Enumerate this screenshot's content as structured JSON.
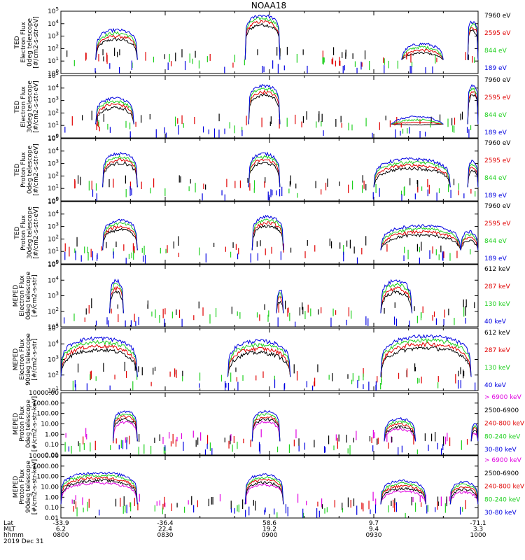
{
  "title": "NOAA18",
  "colors": {
    "black": "#000000",
    "red": "#e00000",
    "green": "#20d020",
    "blue": "#0000e0",
    "magenta": "#e000e0"
  },
  "footer": {
    "row_labels": [
      "Lat",
      "MLT",
      "hhmm"
    ],
    "date": "2019 Dec 31",
    "ticks": [
      {
        "time": "0800",
        "lat": "-33.9",
        "mlt": "6.2"
      },
      {
        "time": "0830",
        "lat": "-36.4",
        "mlt": "22.4"
      },
      {
        "time": "0900",
        "lat": "58.6",
        "mlt": "19.2"
      },
      {
        "time": "0930",
        "lat": "9.7",
        "mlt": "9.4"
      },
      {
        "time": "1000",
        "lat": "-71.1",
        "mlt": "3.3"
      }
    ]
  },
  "chart_data": [
    {
      "type": "line",
      "ylabel": [
        "TED",
        "Electron Flux",
        "0deg telescope",
        "[#/cm2-s-str-eV]"
      ],
      "yscale": "log",
      "ylim": [
        1,
        100000
      ],
      "ytick_labels": [
        "10^0",
        "10^1",
        "10^2",
        "10^3",
        "10^4",
        "10^5"
      ],
      "xlim": [
        "0800",
        "1000"
      ],
      "series": [
        {
          "name": "7960 eV",
          "color": "black"
        },
        {
          "name": "2595 eV",
          "color": "red"
        },
        {
          "name": "844 eV",
          "color": "green"
        },
        {
          "name": "189 eV",
          "color": "blue"
        }
      ],
      "activity": [
        {
          "from": "0810",
          "to": "0822",
          "peak": 4000
        },
        {
          "from": "0853",
          "to": "0903",
          "peak": 60000
        },
        {
          "from": "0938",
          "to": "0950",
          "peak": 300
        },
        {
          "from": "0957",
          "to": "1000",
          "peak": 20000
        }
      ]
    },
    {
      "type": "line",
      "ylabel": [
        "TED",
        "Electron Flux",
        "30deg telescope",
        "[#/cm2-s-str-eV]"
      ],
      "yscale": "log",
      "ylim": [
        1,
        100000
      ],
      "ytick_labels": [
        "10^0",
        "10^1",
        "10^2",
        "10^3",
        "10^4",
        "10^5"
      ],
      "xlim": [
        "0800",
        "1000"
      ],
      "series": [
        {
          "name": "7960 eV",
          "color": "black"
        },
        {
          "name": "2595 eV",
          "color": "red"
        },
        {
          "name": "844 eV",
          "color": "green"
        },
        {
          "name": "189 eV",
          "color": "blue"
        }
      ],
      "activity": [
        {
          "from": "0810",
          "to": "0821",
          "peak": 2000
        },
        {
          "from": "0854",
          "to": "0903",
          "peak": 20000
        },
        {
          "from": "0935",
          "to": "0950",
          "peak": 60
        },
        {
          "from": "0957",
          "to": "1000",
          "peak": 20000
        }
      ]
    },
    {
      "type": "line",
      "ylabel": [
        "TED",
        "Proton Flux",
        "0deg telescope",
        "[#/cm2-s-str-eV]"
      ],
      "yscale": "log",
      "ylim": [
        1,
        100000
      ],
      "ytick_labels": [
        "10^0",
        "10^1",
        "10^2",
        "10^3",
        "10^4",
        "10^5"
      ],
      "xlim": [
        "0800",
        "1000"
      ],
      "series": [
        {
          "name": "7960 eV",
          "color": "black"
        },
        {
          "name": "2595 eV",
          "color": "red"
        },
        {
          "name": "844 eV",
          "color": "green"
        },
        {
          "name": "189 eV",
          "color": "blue"
        }
      ],
      "activity": [
        {
          "from": "0812",
          "to": "0822",
          "peak": 8000
        },
        {
          "from": "0854",
          "to": "0903",
          "peak": 8000
        },
        {
          "from": "0930",
          "to": "0952",
          "peak": 3000
        },
        {
          "from": "0957",
          "to": "1000",
          "peak": 2000
        }
      ]
    },
    {
      "type": "line",
      "ylabel": [
        "TED",
        "Proton Flux",
        "30deg telescope",
        "[#/cm2-s-str-eV]"
      ],
      "yscale": "log",
      "ylim": [
        1,
        100000
      ],
      "ytick_labels": [
        "10^0",
        "10^1",
        "10^2",
        "10^3",
        "10^4",
        "10^5"
      ],
      "xlim": [
        "0800",
        "1000"
      ],
      "series": [
        {
          "name": "7960 eV",
          "color": "black"
        },
        {
          "name": "2595 eV",
          "color": "red"
        },
        {
          "name": "844 eV",
          "color": "green"
        },
        {
          "name": "189 eV",
          "color": "blue"
        }
      ],
      "activity": [
        {
          "from": "0812",
          "to": "0822",
          "peak": 4000
        },
        {
          "from": "0855",
          "to": "0904",
          "peak": 8000
        },
        {
          "from": "0932",
          "to": "0955",
          "peak": 1500
        },
        {
          "from": "0955",
          "to": "1000",
          "peak": 500
        }
      ]
    },
    {
      "type": "line",
      "ylabel": [
        "MEPED",
        "Electron Flux",
        "0deg telescope",
        "[#/cm2-s-str]"
      ],
      "yscale": "log",
      "ylim": [
        10,
        100000
      ],
      "ytick_labels": [
        "10^1",
        "10^2",
        "10^3",
        "10^4",
        "10^5"
      ],
      "xlim": [
        "0800",
        "1000"
      ],
      "series": [
        {
          "name": "612 keV",
          "color": "black"
        },
        {
          "name": "287 keV",
          "color": "red"
        },
        {
          "name": "130 keV",
          "color": "green"
        },
        {
          "name": "40 keV",
          "color": "blue"
        }
      ],
      "activity": [
        {
          "from": "0814",
          "to": "0818",
          "peak": 12000
        },
        {
          "from": "0902",
          "to": "0904",
          "peak": 3000
        },
        {
          "from": "0932",
          "to": "0941",
          "peak": 12000
        }
      ]
    },
    {
      "type": "line",
      "ylabel": [
        "MEPED",
        "Electron Flux",
        "90deg telescope",
        "[#/cm2-s-str]"
      ],
      "yscale": "log",
      "ylim": [
        10,
        100000
      ],
      "ytick_labels": [
        "10^1",
        "10^2",
        "10^3",
        "10^4",
        "10^5"
      ],
      "xlim": [
        "0800",
        "1000"
      ],
      "series": [
        {
          "name": "612 keV",
          "color": "black"
        },
        {
          "name": "287 keV",
          "color": "red"
        },
        {
          "name": "130 keV",
          "color": "green"
        },
        {
          "name": "40 keV",
          "color": "blue"
        }
      ],
      "activity": [
        {
          "from": "0800",
          "to": "0822",
          "peak": 30000
        },
        {
          "from": "0848",
          "to": "0906",
          "peak": 20000
        },
        {
          "from": "0932",
          "to": "0958",
          "peak": 40000
        }
      ]
    },
    {
      "type": "line",
      "ylabel": [
        "MEPED",
        "Proton Flux",
        "0deg telescope",
        "[#/cm2-s-str-keV]"
      ],
      "yscale": "log",
      "ylim": [
        0.01,
        10000
      ],
      "ytick_labels": [
        "0.01",
        "0.10",
        "1.00",
        "10.00",
        "100.00",
        "1000.00",
        "10000.00"
      ],
      "xlim": [
        "0800",
        "1000"
      ],
      "series": [
        {
          "name": "> 6900 keV",
          "color": "magenta"
        },
        {
          "name": "2500-6900",
          "color": "black"
        },
        {
          "name": "240-800 keV",
          "color": "red"
        },
        {
          "name": "80-240 keV",
          "color": "green"
        },
        {
          "name": "30-80 keV",
          "color": "blue"
        }
      ],
      "activity": [
        {
          "from": "0815",
          "to": "0822",
          "peak": 200
        },
        {
          "from": "0855",
          "to": "0903",
          "peak": 200
        },
        {
          "from": "0933",
          "to": "0942",
          "peak": 40
        },
        {
          "from": "0958",
          "to": "1000",
          "peak": 15
        }
      ]
    },
    {
      "type": "line",
      "ylabel": [
        "MEPED",
        "Proton Flux",
        "90deg telescope",
        "[#/cm2-s-str-keV]"
      ],
      "yscale": "log",
      "ylim": [
        0.01,
        10000
      ],
      "ytick_labels": [
        "0.01",
        "0.10",
        "1.00",
        "10.00",
        "100.00",
        "1000.00",
        "10000.00"
      ],
      "xlim": [
        "0800",
        "1000"
      ],
      "series": [
        {
          "name": "> 6900 keV",
          "color": "magenta"
        },
        {
          "name": "2500-6900",
          "color": "black"
        },
        {
          "name": "240-800 keV",
          "color": "red"
        },
        {
          "name": "80-240 keV",
          "color": "green"
        },
        {
          "name": "30-80 keV",
          "color": "blue"
        }
      ],
      "activity": [
        {
          "from": "0800",
          "to": "0822",
          "peak": 300
        },
        {
          "from": "0853",
          "to": "0904",
          "peak": 200
        },
        {
          "from": "0932",
          "to": "0945",
          "peak": 50
        },
        {
          "from": "0952",
          "to": "1000",
          "peak": 40
        }
      ]
    }
  ]
}
